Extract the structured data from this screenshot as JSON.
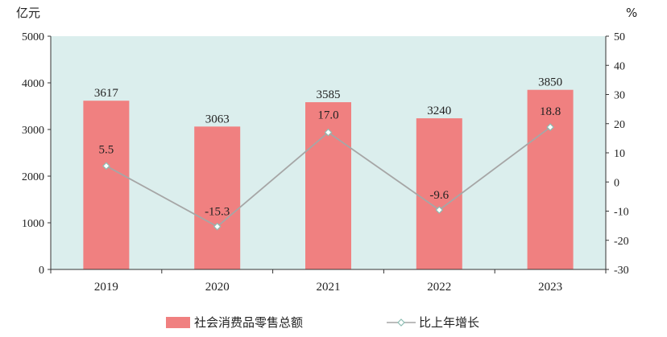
{
  "chart_data": {
    "type": "bar",
    "categories": [
      "2019",
      "2020",
      "2021",
      "2022",
      "2023"
    ],
    "series": [
      {
        "name": "社会消费品零售总额",
        "type": "bar",
        "axis": "left",
        "values": [
          3617,
          3063,
          3585,
          3240,
          3850
        ],
        "labels": [
          "3617",
          "3063",
          "3585",
          "3240",
          "3850"
        ],
        "color": "#f08080"
      },
      {
        "name": "比上年增长",
        "type": "line",
        "axis": "right",
        "values": [
          5.5,
          -15.3,
          17.0,
          -9.6,
          18.8
        ],
        "labels": [
          "5.5",
          "-15.3",
          "17.0",
          "-9.6",
          "18.8"
        ],
        "color": "#a6a6a6"
      }
    ],
    "y_left": {
      "unit": "亿元",
      "ylim": [
        0,
        5000
      ],
      "ticks": [
        "0",
        "1000",
        "2000",
        "3000",
        "4000",
        "5000"
      ]
    },
    "y_right": {
      "unit": "%",
      "ylim": [
        -30,
        50
      ],
      "ticks": [
        "-30",
        "-20",
        "-10",
        "0",
        "10",
        "20",
        "30",
        "40",
        "50"
      ]
    },
    "plot_background": "#dbeeed",
    "grid": false,
    "legend_position": "bottom"
  }
}
